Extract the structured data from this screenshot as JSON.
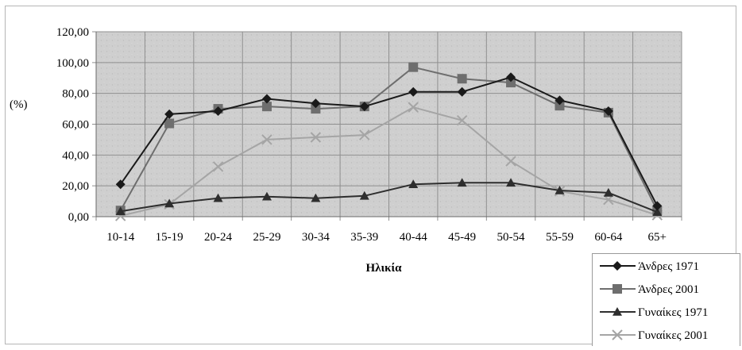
{
  "chart_data": {
    "type": "line",
    "title": "",
    "xlabel": "Ηλικία",
    "ylabel": "(%)",
    "categories": [
      "10-14",
      "15-19",
      "20-24",
      "25-29",
      "30-34",
      "35-39",
      "40-44",
      "45-49",
      "50-54",
      "55-59",
      "60-64",
      "65+"
    ],
    "ylim": [
      0,
      120
    ],
    "yticks": [
      "0,00",
      "20,00",
      "40,00",
      "60,00",
      "80,00",
      "100,00",
      "120,00"
    ],
    "grid": true,
    "legend_position": "bottom-right",
    "series": [
      {
        "name": "Άνδρες 1971",
        "marker": "diamond",
        "color": "#1a1a1a",
        "values": [
          21,
          66.5,
          68.5,
          76.5,
          73.5,
          71.5,
          81,
          81,
          90.5,
          75.5,
          68.5,
          7
        ]
      },
      {
        "name": "Άνδρες 2001",
        "marker": "square",
        "color": "#6e6e6e",
        "values": [
          4,
          60.5,
          70,
          71.5,
          70,
          71.5,
          97,
          89.5,
          87,
          72,
          67.5,
          4
        ]
      },
      {
        "name": "Γυναίκες 1971",
        "marker": "triangle",
        "color": "#2e2e2e",
        "values": [
          3.5,
          8.5,
          12,
          13,
          12,
          13.5,
          21,
          22,
          22,
          17,
          15.5,
          3
        ]
      },
      {
        "name": "Γυναίκες 2001",
        "marker": "x",
        "color": "#a5a5a5",
        "values": [
          0.5,
          8,
          32.5,
          50,
          51.5,
          53,
          71,
          62.5,
          36,
          16.5,
          11,
          1
        ]
      }
    ]
  }
}
